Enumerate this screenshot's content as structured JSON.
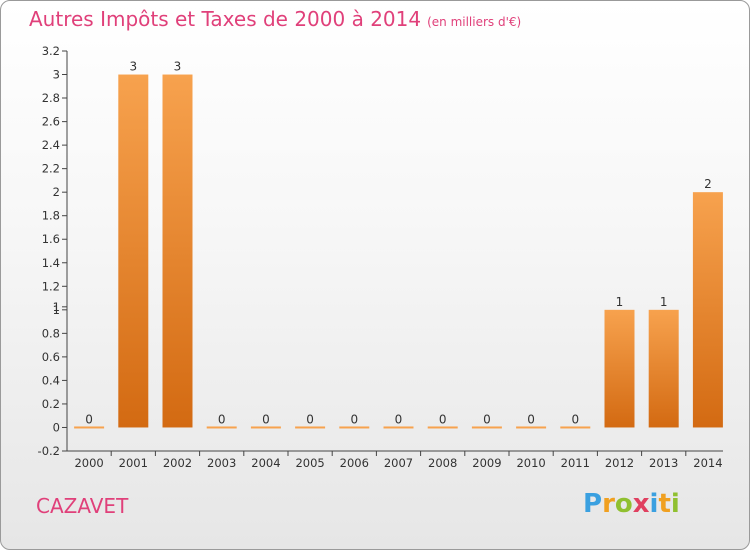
{
  "title": "Autres Impôts et Taxes de 2000 à 2014",
  "unit": "(en milliers d'€)",
  "city": "CAZAVET",
  "logo": "Proxiti",
  "colors": {
    "bar_top": "#f7a24e",
    "bar_bottom": "#d36a12",
    "title": "#e0407a"
  },
  "chart_data": {
    "type": "bar",
    "categories": [
      "2000",
      "2001",
      "2002",
      "2003",
      "2004",
      "2005",
      "2006",
      "2007",
      "2008",
      "2009",
      "2010",
      "2011",
      "2012",
      "2013",
      "2014"
    ],
    "values": [
      0,
      3,
      3,
      0,
      0,
      0,
      0,
      0,
      0,
      0,
      0,
      0,
      1,
      1,
      2
    ],
    "data_labels": [
      "0",
      "3",
      "3",
      "0",
      "0",
      "0",
      "0",
      "0",
      "0",
      "0",
      "0",
      "0",
      "1",
      "1",
      "2"
    ],
    "ylim": [
      -0.2,
      3.2
    ],
    "yticks": [
      "-0.2",
      "0",
      "0.2",
      "0.4",
      "0.6",
      "0.8",
      "1",
      "1",
      "1.2",
      "1.4",
      "1.6",
      "1.8",
      "2",
      "2.2",
      "2.4",
      "2.6",
      "2.8",
      "3",
      "3.2"
    ],
    "ytick_values": [
      -0.2,
      0,
      0.2,
      0.4,
      0.6,
      0.8,
      1.0,
      1.0,
      1.2,
      1.4,
      1.6,
      1.8,
      2.0,
      2.2,
      2.4,
      2.6,
      2.8,
      3.0,
      3.2
    ],
    "grid": false,
    "legend": "none"
  }
}
